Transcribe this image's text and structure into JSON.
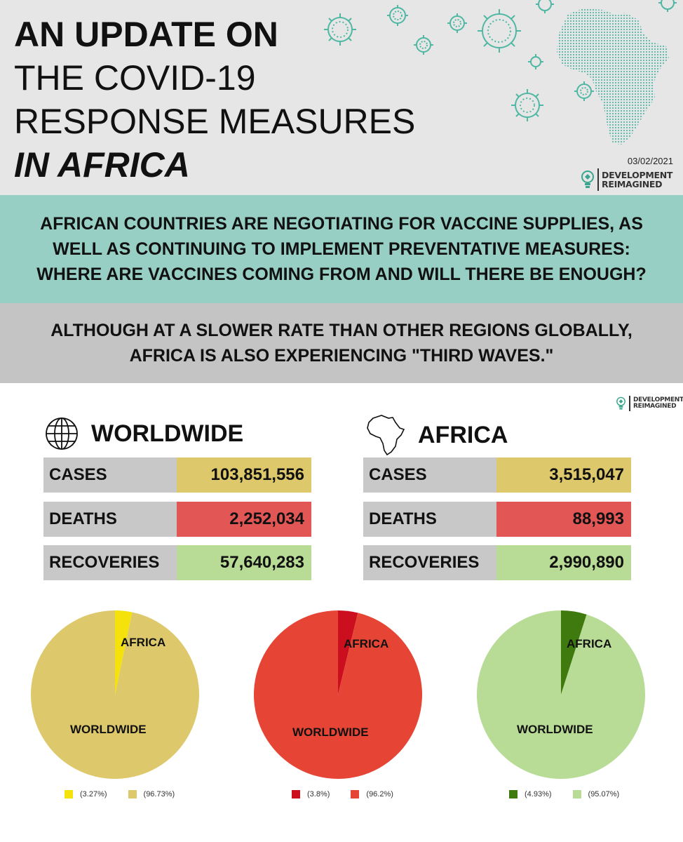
{
  "header": {
    "title_line1": "AN UPDATE ON",
    "title_line2": "THE COVID-19",
    "title_line3": "RESPONSE MEASURES",
    "title_line4": "IN AFRICA",
    "date": "03/02/2021",
    "brand_line1": "DEVELOPMENT",
    "brand_line2": "REIMAGINED"
  },
  "band_teal": "AFRICAN COUNTRIES ARE NEGOTIATING FOR VACCINE SUPPLIES, AS WELL AS CONTINUING TO IMPLEMENT PREVENTATIVE MEASURES: WHERE ARE VACCINES COMING FROM AND WILL THERE BE ENOUGH?",
  "band_grey": "ALTHOUGH AT A SLOWER RATE THAN OTHER REGIONS GLOBALLY, AFRICA IS ALSO EXPERIENCING \"THIRD WAVES.\"",
  "stats": {
    "worldwide": {
      "heading": "WORLDWIDE",
      "cases_label": "CASES",
      "cases": "103,851,556",
      "deaths_label": "DEATHS",
      "deaths": "2,252,034",
      "recoveries_label": "RECOVERIES",
      "recoveries": "57,640,283"
    },
    "africa": {
      "heading": "AFRICA",
      "cases_label": "CASES",
      "cases": "3,515,047",
      "deaths_label": "DEATHS",
      "deaths": "88,993",
      "recoveries_label": "RECOVERIES",
      "recoveries": "2,990,890"
    }
  },
  "colors": {
    "cases_bg": "#ddc96b",
    "deaths_bg": "#e35656",
    "recov_bg": "#b8db96",
    "header_bg": "#e6e6e6",
    "teal_band": "#98cfc4",
    "grey_band": "#c4c4c4",
    "virus": "#4fb7a3"
  },
  "chart_data": [
    {
      "type": "pie",
      "slices": [
        {
          "label": "AFRICA",
          "value": 3.27,
          "color": "#f5e20c",
          "legend": "(3.27%)"
        },
        {
          "label": "WORLDWIDE",
          "value": 96.73,
          "color": "#ddc96b",
          "legend": "(96.73%)"
        }
      ]
    },
    {
      "type": "pie",
      "slices": [
        {
          "label": "AFRICA",
          "value": 3.8,
          "color": "#cc0f1f",
          "legend": "(3.8%)"
        },
        {
          "label": "WORLDWIDE",
          "value": 96.2,
          "color": "#e64535",
          "legend": "(96.2%)"
        }
      ]
    },
    {
      "type": "pie",
      "slices": [
        {
          "label": "AFRICA",
          "value": 4.93,
          "color": "#3f7a0e",
          "legend": "(4.93%)"
        },
        {
          "label": "WORLDWIDE",
          "value": 95.07,
          "color": "#b8db96",
          "legend": "(95.07%)"
        }
      ]
    }
  ]
}
